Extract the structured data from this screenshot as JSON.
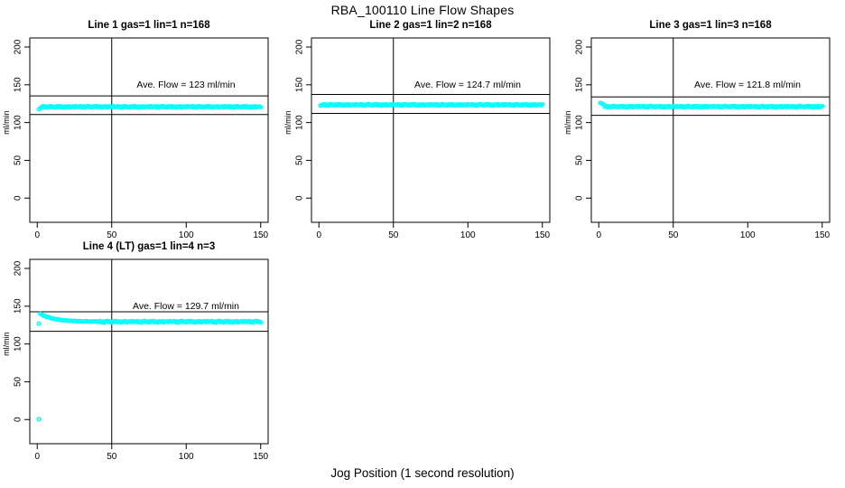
{
  "figure": {
    "title": "RBA_100110  Line Flow Shapes",
    "xlabel": "Jog Position (1 second resolution)",
    "background": "#ffffff"
  },
  "chart_data": {
    "type": "scatter",
    "point_color": "#00ffff",
    "line_color": "#000000",
    "axes": {
      "xlim": [
        -5,
        155
      ],
      "ylim": [
        -32,
        212
      ],
      "xticks": [
        0,
        50,
        100,
        150
      ],
      "yticks": [
        0,
        50,
        100,
        150,
        200
      ],
      "ylabel": "ml/min",
      "vline_x": 50
    },
    "jitter": [
      0,
      0.7,
      -0.55,
      0.3,
      -0.85,
      0.45,
      0.85,
      -0.3,
      0.15,
      -0.7,
      0.55,
      -0.15,
      0.8,
      -0.45,
      0.25,
      -0.8,
      0.4,
      -0.25,
      0.6,
      -0.6,
      0.1,
      0.5,
      -0.4,
      0.7,
      -0.2
    ],
    "panels": [
      {
        "title": "Line 1 gas=1 lin=1 n=168",
        "annotation": "Ave. Flow =  123  ml/min",
        "ave_flow": 123,
        "upper_limit": 135.3,
        "lower_limit": 110.7,
        "segments": [
          {
            "type": "points",
            "pts": [
              [
                1,
                117.5
              ],
              [
                2,
                119
              ]
            ]
          },
          {
            "type": "flat",
            "x0": 3,
            "x1": 150,
            "y": 120.8,
            "amp": 1.3
          }
        ]
      },
      {
        "title": "Line 2 gas=1 lin=2 n=168",
        "annotation": "Ave. Flow =  124.7  ml/min",
        "ave_flow": 124.7,
        "upper_limit": 137.2,
        "lower_limit": 112.2,
        "segments": [
          {
            "type": "points",
            "pts": [
              [
                1,
                122.5
              ]
            ]
          },
          {
            "type": "flat",
            "x0": 2,
            "x1": 150,
            "y": 123.4,
            "amp": 1.2
          }
        ]
      },
      {
        "title": "Line 3 gas=1 lin=3 n=168",
        "annotation": "Ave. Flow =  121.8  ml/min",
        "ave_flow": 121.8,
        "upper_limit": 134.0,
        "lower_limit": 109.6,
        "segments": [
          {
            "type": "points",
            "pts": [
              [
                1,
                126
              ],
              [
                2,
                125.2
              ],
              [
                3,
                124.3
              ]
            ]
          },
          {
            "type": "flat",
            "x0": 4,
            "x1": 150,
            "y": 121.0,
            "amp": 1.3
          }
        ]
      },
      {
        "title": "Line 4 (LT) gas=1 lin=4 n=3",
        "annotation": "Ave. Flow =  129.7  ml/min",
        "ave_flow": 129.7,
        "upper_limit": 142.7,
        "lower_limit": 116.7,
        "segments": [
          {
            "type": "points",
            "pts": [
              [
                1,
                0.5
              ],
              [
                1,
                127
              ]
            ]
          },
          {
            "type": "decay",
            "x0": 2,
            "x1": 40,
            "from": 140,
            "to": 129.5,
            "tau": 9,
            "amp": 0.5
          },
          {
            "type": "flat",
            "x0": 41,
            "x1": 150,
            "y": 129.4,
            "amp": 1.4
          }
        ]
      }
    ]
  }
}
